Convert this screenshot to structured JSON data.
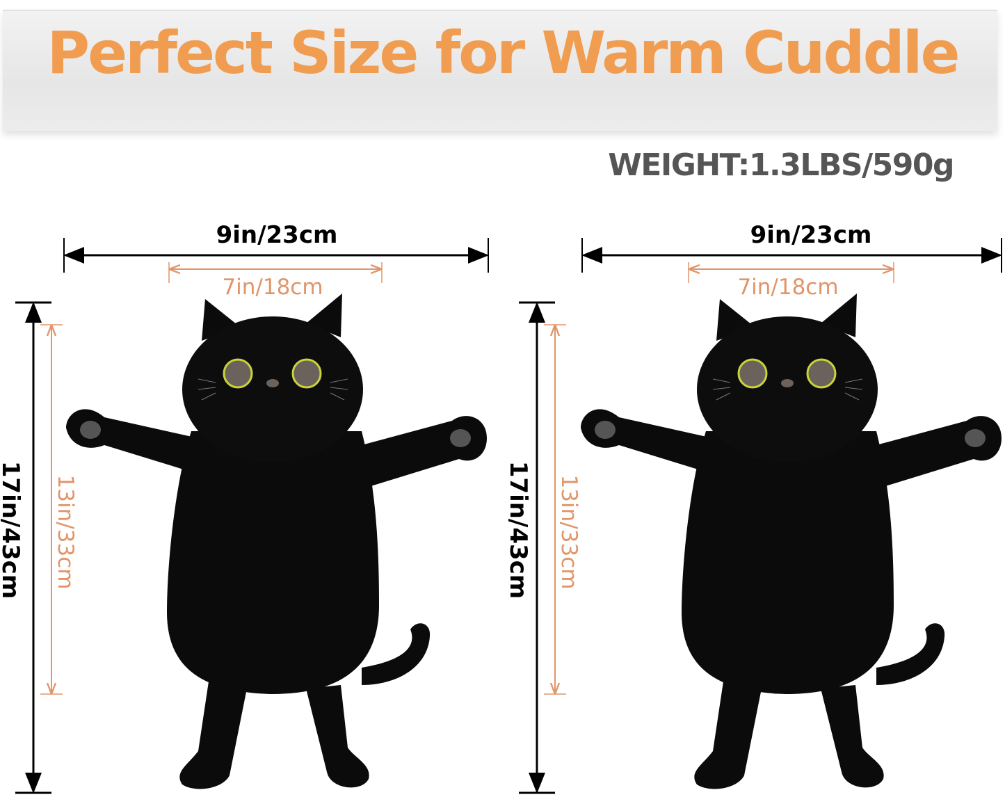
{
  "banner": {
    "title": "Perfect Size for Warm Cuddle"
  },
  "weight": "WEIGHT:1.3LBS/590g",
  "colors": {
    "title": "#f09d51",
    "inner_dimension": "#e0956a",
    "outer_dimension": "#000000",
    "eye_ring": "#c9d43a"
  },
  "cats": [
    {
      "outer_width": "9in/23cm",
      "inner_width": "7in/18cm",
      "outer_height": "17in/43cm",
      "inner_height": "13in/33cm"
    },
    {
      "outer_width": "9in/23cm",
      "inner_width": "7in/18cm",
      "outer_height": "17in/43cm",
      "inner_height": "13in/33cm"
    }
  ]
}
